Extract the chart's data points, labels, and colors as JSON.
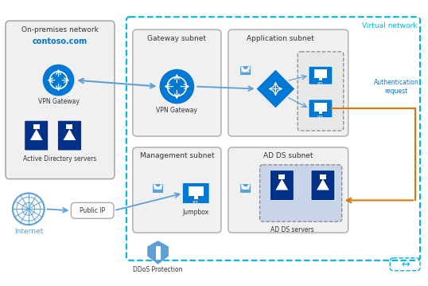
{
  "fig_width": 5.38,
  "fig_height": 3.59,
  "dpi": 100,
  "bg_color": "#ffffff",
  "blue_dark": "#003087",
  "blue_mid": "#0078d4",
  "blue_light": "#5ea0d6",
  "cyan_border": "#00b4d8",
  "orange": "#d97706",
  "labels": {
    "on_premises": "On-premises network",
    "contoso": "contoso.com",
    "vpn_gateway_left": "VPN Gateway",
    "ad_servers_left": "Active Directory servers",
    "internet": "Internet",
    "public_ip": "Public IP",
    "ddos": "DDoS Protection",
    "gateway_subnet": "Gateway subnet",
    "vpn_gateway_right": "VPN Gateway",
    "management_subnet": "Management subnet",
    "jumpbox": "Jumpbox",
    "application_subnet": "Application subnet",
    "virtual_network": "Virtual network",
    "vm": "vm",
    "ad_ds_subnet": "AD DS subnet",
    "ad_ds_servers": "AD DS servers",
    "nsg": "NSG",
    "auth_request": "Authentication\nrequest"
  }
}
